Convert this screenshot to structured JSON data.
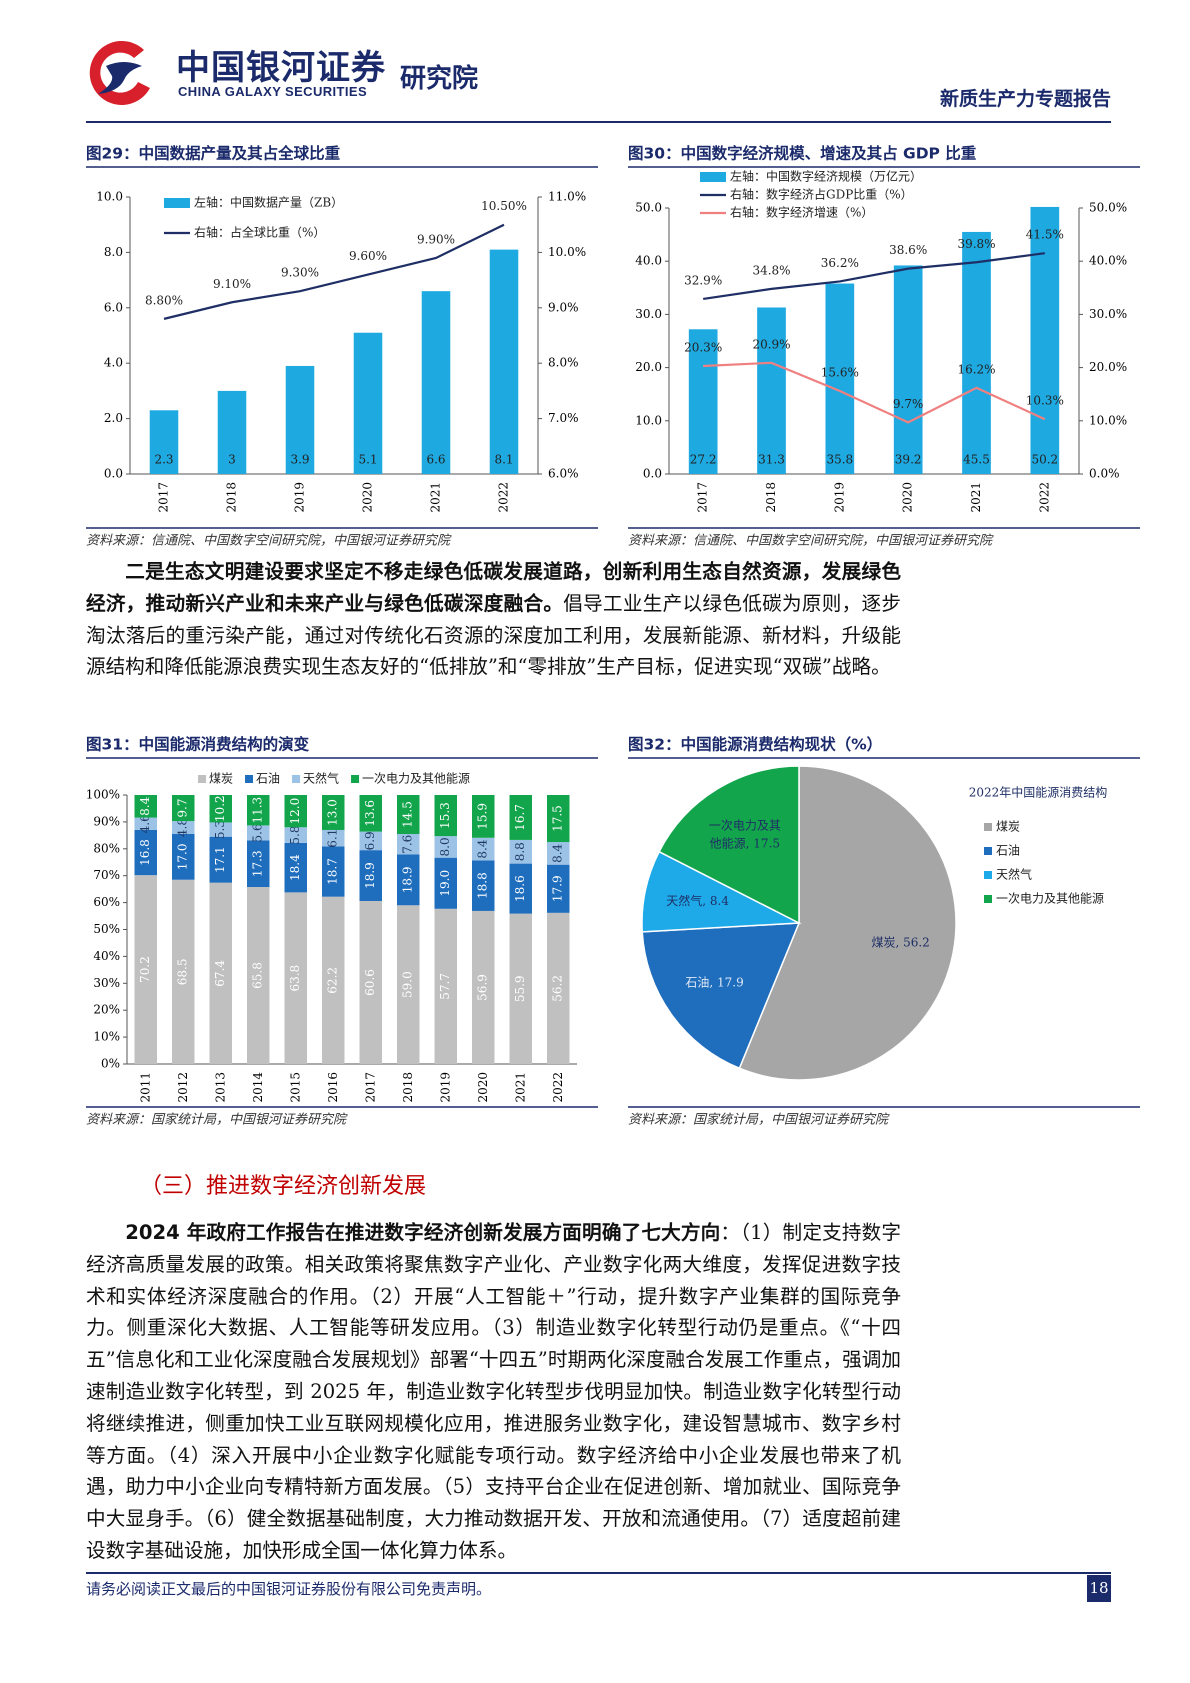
{
  "header": {
    "logo_cn": "中国银河证券",
    "logo_en": "CHINA GALAXY SECURITIES",
    "institute": "研究院",
    "report_title": "新质生产力专题报告"
  },
  "chart_data": [
    {
      "type": "bar",
      "title": "图29：中国数据产量及其占全球比重",
      "source": "资料来源：信通院、中国数字空间研究院，中国银河证券研究院",
      "categories": [
        "2017",
        "2018",
        "2019",
        "2020",
        "2021",
        "2022"
      ],
      "series": [
        {
          "name": "左轴：中国数据产量（ZB）",
          "type": "bar",
          "color": "#1ea9e1",
          "values": [
            2.3,
            3,
            3.9,
            5.1,
            6.6,
            8.1
          ]
        },
        {
          "name": "右轴：占全球比重（%）",
          "type": "line",
          "axis": "y2",
          "color": "#1f2f66",
          "values": [
            8.8,
            9.1,
            9.3,
            9.6,
            9.9,
            10.5
          ],
          "value_labels": [
            "8.80%",
            "9.10%",
            "9.30%",
            "9.60%",
            "9.90%",
            "10.50%"
          ]
        }
      ],
      "ylim": [
        0,
        10
      ],
      "yticks": [
        {
          "value": 0,
          "label": "0.0"
        },
        {
          "value": 2,
          "label": "2.0"
        },
        {
          "value": 4,
          "label": "4.0"
        },
        {
          "value": 6,
          "label": "6.0"
        },
        {
          "value": 8,
          "label": "8.0"
        },
        {
          "value": 10,
          "label": "10.0"
        }
      ],
      "y2lim": [
        6,
        11
      ],
      "y2ticks": [
        {
          "value": 6,
          "label": "6.0%"
        },
        {
          "value": 7,
          "label": "7.0%"
        },
        {
          "value": 8,
          "label": "8.0%"
        },
        {
          "value": 9,
          "label": "9.0%"
        },
        {
          "value": 10,
          "label": "10.0%"
        },
        {
          "value": 11,
          "label": "11.0%"
        }
      ],
      "legend": "upper-left"
    },
    {
      "type": "bar",
      "title": "图30：中国数字经济规模、增速及其占 GDP 比重",
      "source": "资料来源：信通院、中国数字空间研究院，中国银河证券研究院",
      "categories": [
        "2017",
        "2018",
        "2019",
        "2020",
        "2021",
        "2022"
      ],
      "series": [
        {
          "name": "左轴：中国数字经济规模（万亿元）",
          "type": "bar",
          "color": "#1ea9e1",
          "values": [
            27.2,
            31.3,
            35.8,
            39.2,
            45.5,
            50.2
          ]
        },
        {
          "name": "右轴：数字经济占GDP比重（%）",
          "type": "line",
          "axis": "y2",
          "color": "#1f2f66",
          "values": [
            32.9,
            34.8,
            36.2,
            38.6,
            39.8,
            41.5
          ],
          "value_labels": [
            "32.9%",
            "34.8%",
            "36.2%",
            "38.6%",
            "39.8%",
            "41.5%"
          ]
        },
        {
          "name": "右轴：数字经济增速（%）",
          "type": "line",
          "axis": "y2",
          "color": "#f08080",
          "values": [
            20.3,
            20.9,
            15.6,
            9.7,
            16.2,
            10.3
          ],
          "value_labels": [
            "20.3%",
            "20.9%",
            "15.6%",
            "9.7%",
            "16.2%",
            "10.3%"
          ]
        }
      ],
      "ylim": [
        0,
        50
      ],
      "yticks": [
        {
          "value": 0,
          "label": "0.0"
        },
        {
          "value": 10,
          "label": "10.0"
        },
        {
          "value": 20,
          "label": "20.0"
        },
        {
          "value": 30,
          "label": "30.0"
        },
        {
          "value": 40,
          "label": "40.0"
        },
        {
          "value": 50,
          "label": "50.0"
        }
      ],
      "y2lim": [
        0,
        50
      ],
      "y2ticks": [
        {
          "value": 0,
          "label": "0.0%"
        },
        {
          "value": 10,
          "label": "10.0%"
        },
        {
          "value": 20,
          "label": "20.0%"
        },
        {
          "value": 30,
          "label": "30.0%"
        },
        {
          "value": 40,
          "label": "40.0%"
        },
        {
          "value": 50,
          "label": "50.0%"
        }
      ],
      "legend": "upper-left"
    },
    {
      "type": "stacked-bar",
      "title": "图31：中国能源消费结构的演变",
      "source": "资料来源：国家统计局，中国银河证券研究院",
      "categories": [
        "2011",
        "2012",
        "2013",
        "2014",
        "2015",
        "2016",
        "2017",
        "2018",
        "2019",
        "2020",
        "2021",
        "2022"
      ],
      "series": [
        {
          "name": "煤炭",
          "color": "#c0c0c0",
          "values": [
            70.2,
            68.5,
            67.4,
            65.8,
            63.8,
            62.2,
            60.6,
            59.0,
            57.7,
            56.9,
            55.9,
            56.2
          ],
          "value_labels": [
            "70.2",
            "68.5",
            "67.4",
            "65.8",
            "63.8",
            "62.2",
            "60.6",
            "59.0",
            "57.7",
            "56.9",
            "55.9",
            "56.2"
          ]
        },
        {
          "name": "石油",
          "color": "#1f6dbd",
          "values": [
            16.8,
            17.0,
            17.1,
            17.3,
            18.4,
            18.7,
            18.9,
            18.9,
            19.0,
            18.8,
            18.6,
            17.9
          ],
          "value_labels": [
            "16.8",
            "17.0",
            "17.1",
            "17.3",
            "18.4",
            "18.7",
            "18.9",
            "18.9",
            "19.0",
            "18.8",
            "18.6",
            "17.9"
          ]
        },
        {
          "name": "天然气",
          "color": "#9cc3e6",
          "values": [
            4.6,
            4.8,
            5.3,
            5.6,
            5.8,
            6.1,
            6.9,
            7.6,
            8.0,
            8.4,
            8.8,
            8.4
          ],
          "value_labels": [
            "4.6",
            "4.8",
            "5.3",
            "5.6",
            "5.8",
            "6.1",
            "6.9",
            "7.6",
            "8.0",
            "8.4",
            "8.8",
            "8.4"
          ]
        },
        {
          "name": "一次电力及其他能源",
          "color": "#12a54b",
          "values": [
            8.4,
            9.7,
            10.2,
            11.3,
            12.0,
            13.0,
            13.6,
            14.5,
            15.3,
            15.9,
            16.7,
            17.5
          ],
          "value_labels": [
            "8.4",
            "9.7",
            "10.2",
            "11.3",
            "12.0",
            "13.0",
            "13.6",
            "14.5",
            "15.3",
            "15.9",
            "16.7",
            "17.5"
          ]
        }
      ],
      "ylim": [
        0,
        100
      ],
      "yticks": [
        {
          "value": 0,
          "label": "0%"
        },
        {
          "value": 10,
          "label": "10%"
        },
        {
          "value": 20,
          "label": "20%"
        },
        {
          "value": 30,
          "label": "30%"
        },
        {
          "value": 40,
          "label": "40%"
        },
        {
          "value": 50,
          "label": "50%"
        },
        {
          "value": 60,
          "label": "60%"
        },
        {
          "value": 70,
          "label": "70%"
        },
        {
          "value": 80,
          "label": "80%"
        },
        {
          "value": 90,
          "label": "90%"
        },
        {
          "value": 100,
          "label": "100%"
        }
      ],
      "legend": "top"
    },
    {
      "type": "pie",
      "title": "图32：中国能源消费结构现状（%）",
      "subtitle": "2022年中国能源消费结构",
      "source": "资料来源：国家统计局，中国银河证券研究院",
      "categories": [
        "煤炭",
        "石油",
        "天然气",
        "一次电力及其他能源"
      ],
      "values": [
        56.2,
        17.9,
        8.4,
        17.5
      ],
      "value_labels": [
        "煤炭, 56.2",
        "石油, 17.9",
        "天然气, 8.4",
        "一次电力及其他能源, 17.5"
      ],
      "colors": [
        "#a6a6a6",
        "#1f6dbd",
        "#1ea9e8",
        "#12a54b"
      ],
      "legend": "right"
    }
  ],
  "paragraph_1": {
    "bold": "二是生态文明建设要求坚定不移走绿色低碳发展道路，创新利用生态自然资源，发展绿色经济，推动新兴产业和未来产业与绿色低碳深度融合。",
    "text": "倡导工业生产以绿色低碳为原则，逐步淘汰落后的重污染产能，通过对传统化石资源的深度加工利用，发展新能源、新材料，升级能源结构和降低能源浪费实现生态友好的“低排放”和“零排放”生产目标，促进实现“双碳”战略。"
  },
  "section_heading": "（三）推进数字经济创新发展",
  "paragraph_2": {
    "bold": "2024 年政府工作报告在推进数字经济创新发展方面明确了七大方向",
    "text": "：（1）制定支持数字经济高质量发展的政策。相关政策将聚焦数字产业化、产业数字化两大维度，发挥促进数字技术和实体经济深度融合的作用。（2）开展“人工智能＋”行动，提升数字产业集群的国际竞争力。侧重深化大数据、人工智能等研发应用。（3）制造业数字化转型行动仍是重点。《“十四五”信息化和工业化深度融合发展规划》部署“十四五”时期两化深度融合发展工作重点，强调加速制造业数字化转型，到 2025 年，制造业数字化转型步伐明显加快。制造业数字化转型行动将继续推进，侧重加快工业互联网规模化应用，推进服务业数字化，建设智慧城市、数字乡村等方面。（4）深入开展中小企业数字化赋能专项行动。数字经济给中小企业发展也带来了机遇，助力中小企业向专精特新方面发展。（5）支持平台企业在促进创新、增加就业、国际竞争中大显身手。（6）健全数据基础制度，大力推动数据开发、开放和流通使用。（7）适度超前建设数字基础设施，加快形成全国一体化算力体系。"
  },
  "footer": {
    "disclaimer": "请务必阅读正文最后的中国银河证券股份有限公司免责声明。",
    "page": 18
  }
}
